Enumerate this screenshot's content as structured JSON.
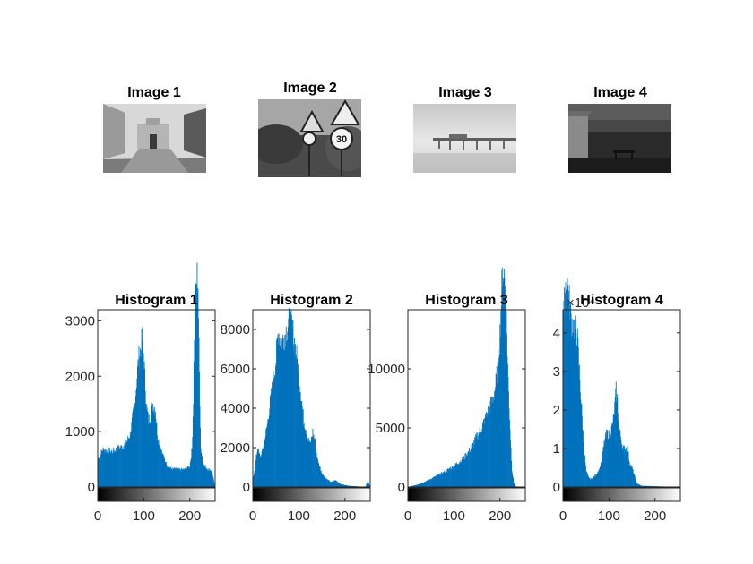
{
  "images": [
    {
      "title": "Image 1",
      "scene": "street-with-gate"
    },
    {
      "title": "Image 2",
      "scene": "road-signs-30"
    },
    {
      "title": "Image 3",
      "scene": "pier-over-sea"
    },
    {
      "title": "Image 4",
      "scene": "dark-landscape"
    }
  ],
  "signs": {
    "speed": "30"
  },
  "colors": {
    "bar": "#0072BD",
    "axis": "#262626",
    "frame": "#000000"
  },
  "chart_data": [
    {
      "type": "bar",
      "title": "Histogram 1",
      "xlim": [
        0,
        255
      ],
      "ylim": [
        0,
        3200
      ],
      "xticks": [
        0,
        100,
        200
      ],
      "yticks": [
        0,
        1000,
        2000,
        3000
      ],
      "colorbar": "gray",
      "envelope": [
        [
          0,
          500
        ],
        [
          10,
          680
        ],
        [
          30,
          640
        ],
        [
          50,
          720
        ],
        [
          60,
          780
        ],
        [
          70,
          950
        ],
        [
          80,
          1500
        ],
        [
          88,
          2300
        ],
        [
          93,
          2500
        ],
        [
          97,
          2700
        ],
        [
          100,
          2300
        ],
        [
          105,
          1500
        ],
        [
          110,
          1200
        ],
        [
          115,
          1300
        ],
        [
          120,
          1500
        ],
        [
          125,
          1400
        ],
        [
          130,
          900
        ],
        [
          140,
          600
        ],
        [
          150,
          400
        ],
        [
          160,
          330
        ],
        [
          170,
          320
        ],
        [
          180,
          310
        ],
        [
          190,
          320
        ],
        [
          200,
          380
        ],
        [
          205,
          700
        ],
        [
          208,
          1600
        ],
        [
          210,
          2800
        ],
        [
          212,
          3200
        ],
        [
          214,
          3600
        ],
        [
          216,
          3800
        ],
        [
          218,
          3700
        ],
        [
          220,
          2500
        ],
        [
          224,
          700
        ],
        [
          230,
          400
        ],
        [
          240,
          320
        ],
        [
          248,
          300
        ],
        [
          255,
          0
        ]
      ]
    },
    {
      "type": "bar",
      "title": "Histogram 2",
      "xlim": [
        0,
        255
      ],
      "ylim": [
        0,
        9000
      ],
      "xticks": [
        0,
        100,
        200
      ],
      "yticks": [
        0,
        2000,
        4000,
        6000,
        8000
      ],
      "colorbar": "gray",
      "envelope": [
        [
          0,
          400
        ],
        [
          5,
          1200
        ],
        [
          10,
          2000
        ],
        [
          15,
          1500
        ],
        [
          20,
          1800
        ],
        [
          30,
          3000
        ],
        [
          40,
          4800
        ],
        [
          50,
          6500
        ],
        [
          55,
          8000
        ],
        [
          60,
          7300
        ],
        [
          65,
          7500
        ],
        [
          70,
          7800
        ],
        [
          75,
          8200
        ],
        [
          80,
          8400
        ],
        [
          85,
          8100
        ],
        [
          90,
          7400
        ],
        [
          95,
          6600
        ],
        [
          100,
          5600
        ],
        [
          105,
          4600
        ],
        [
          110,
          3400
        ],
        [
          115,
          3000
        ],
        [
          120,
          2400
        ],
        [
          125,
          2200
        ],
        [
          130,
          2800
        ],
        [
          135,
          2300
        ],
        [
          140,
          1400
        ],
        [
          150,
          700
        ],
        [
          160,
          400
        ],
        [
          170,
          250
        ],
        [
          180,
          350
        ],
        [
          190,
          150
        ],
        [
          200,
          100
        ],
        [
          210,
          60
        ],
        [
          220,
          40
        ],
        [
          235,
          20
        ],
        [
          245,
          10
        ],
        [
          250,
          300
        ],
        [
          255,
          0
        ]
      ]
    },
    {
      "type": "bar",
      "title": "Histogram 3",
      "xlim": [
        0,
        255
      ],
      "ylim": [
        0,
        15000
      ],
      "xticks": [
        0,
        100,
        200
      ],
      "yticks": [
        0,
        5000,
        10000
      ],
      "colorbar": "gray",
      "envelope": [
        [
          0,
          0
        ],
        [
          10,
          100
        ],
        [
          20,
          200
        ],
        [
          40,
          500
        ],
        [
          60,
          900
        ],
        [
          80,
          1300
        ],
        [
          100,
          1800
        ],
        [
          120,
          2400
        ],
        [
          130,
          2900
        ],
        [
          140,
          3500
        ],
        [
          150,
          4300
        ],
        [
          160,
          5000
        ],
        [
          170,
          6000
        ],
        [
          180,
          7000
        ],
        [
          185,
          7500
        ],
        [
          190,
          8500
        ],
        [
          195,
          10000
        ],
        [
          200,
          13000
        ],
        [
          203,
          16000
        ],
        [
          206,
          18500
        ],
        [
          209,
          18000
        ],
        [
          212,
          16500
        ],
        [
          215,
          13000
        ],
        [
          218,
          9000
        ],
        [
          222,
          5000
        ],
        [
          226,
          1500
        ],
        [
          230,
          400
        ],
        [
          235,
          0
        ]
      ]
    },
    {
      "type": "bar",
      "title": "Histogram 4",
      "xlim": [
        0,
        255
      ],
      "ylim": [
        0,
        4.6
      ],
      "xticks": [
        0,
        100,
        200
      ],
      "yticks": [
        0,
        1,
        2,
        3,
        4
      ],
      "exponent_label": "×10⁴",
      "colorbar": "gray",
      "envelope": [
        [
          0,
          4.2
        ],
        [
          3,
          5.0
        ],
        [
          6,
          5.4
        ],
        [
          10,
          5.2
        ],
        [
          14,
          4.7
        ],
        [
          18,
          4.3
        ],
        [
          25,
          4.1
        ],
        [
          30,
          4.0
        ],
        [
          35,
          3.0
        ],
        [
          40,
          2.0
        ],
        [
          45,
          1.0
        ],
        [
          50,
          0.4
        ],
        [
          55,
          0.25
        ],
        [
          60,
          0.2
        ],
        [
          70,
          0.3
        ],
        [
          80,
          0.5
        ],
        [
          85,
          0.8
        ],
        [
          90,
          1.2
        ],
        [
          95,
          1.4
        ],
        [
          100,
          1.35
        ],
        [
          105,
          1.5
        ],
        [
          110,
          1.8
        ],
        [
          115,
          2.5
        ],
        [
          118,
          2.2
        ],
        [
          122,
          1.5
        ],
        [
          130,
          1.0
        ],
        [
          140,
          1.0
        ],
        [
          145,
          0.6
        ],
        [
          150,
          0.5
        ],
        [
          155,
          0.3
        ],
        [
          160,
          0.1
        ],
        [
          170,
          0.03
        ],
        [
          255,
          0
        ]
      ]
    }
  ]
}
